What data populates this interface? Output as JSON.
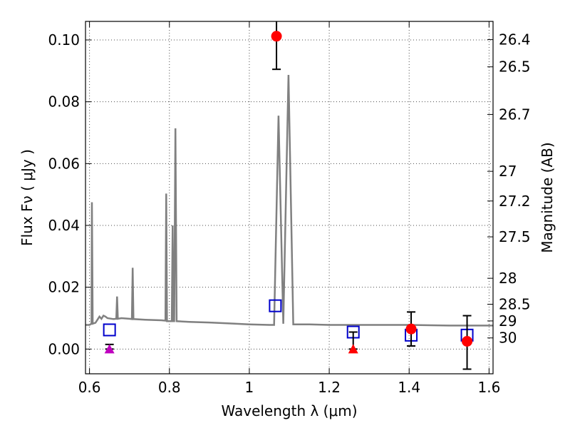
{
  "chart_data": {
    "type": "line",
    "xlabel": "Wavelength  λ (μm)",
    "ylabel": "Flux  Fν  ( μJy )",
    "ylabel_right": "Magnitude (AB)",
    "xlim": [
      0.59,
      1.61
    ],
    "ylim": [
      -0.008,
      0.106
    ],
    "grid": true,
    "x_ticks": [
      0.6,
      0.8,
      1.0,
      1.2,
      1.4,
      1.6
    ],
    "x_tick_labels": [
      "0.6",
      "0.8",
      "1",
      "1.2",
      "1.4",
      "1.6"
    ],
    "y_ticks": [
      0.0,
      0.02,
      0.04,
      0.06,
      0.08,
      0.1
    ],
    "y_tick_labels": [
      "0.00",
      "0.02",
      "0.04",
      "0.06",
      "0.08",
      "0.10"
    ],
    "right_ticks": [
      {
        "label": "26.4",
        "flux": 0.1001
      },
      {
        "label": "26.5",
        "flux": 0.0913
      },
      {
        "label": "26.7",
        "flux": 0.0759
      },
      {
        "label": "27",
        "flux": 0.0575
      },
      {
        "label": "27.2",
        "flux": 0.0479
      },
      {
        "label": "27.5",
        "flux": 0.0363
      },
      {
        "label": "28",
        "flux": 0.0229
      },
      {
        "label": "28.5",
        "flux": 0.0145
      },
      {
        "label": "29",
        "flux": 0.0091
      },
      {
        "label": "30",
        "flux": 0.0036
      }
    ],
    "series": [
      {
        "kind": "line",
        "color": "#808080",
        "points": [
          [
            0.59,
            0.0078
          ],
          [
            0.6,
            0.0078
          ],
          [
            0.605,
            0.0082
          ],
          [
            0.606,
            0.0475
          ],
          [
            0.608,
            0.0082
          ],
          [
            0.615,
            0.0085
          ],
          [
            0.62,
            0.0095
          ],
          [
            0.625,
            0.0105
          ],
          [
            0.63,
            0.0098
          ],
          [
            0.635,
            0.0108
          ],
          [
            0.64,
            0.0105
          ],
          [
            0.645,
            0.01
          ],
          [
            0.66,
            0.0097
          ],
          [
            0.667,
            0.0098
          ],
          [
            0.669,
            0.017
          ],
          [
            0.671,
            0.0098
          ],
          [
            0.68,
            0.01
          ],
          [
            0.7,
            0.0098
          ],
          [
            0.706,
            0.0097
          ],
          [
            0.708,
            0.0263
          ],
          [
            0.71,
            0.0097
          ],
          [
            0.74,
            0.0095
          ],
          [
            0.78,
            0.0093
          ],
          [
            0.79,
            0.0092
          ],
          [
            0.792,
            0.0503
          ],
          [
            0.794,
            0.009
          ],
          [
            0.8,
            0.009
          ],
          [
            0.806,
            0.009
          ],
          [
            0.808,
            0.04
          ],
          [
            0.81,
            0.009
          ],
          [
            0.812,
            0.009
          ],
          [
            0.815,
            0.0714
          ],
          [
            0.818,
            0.009
          ],
          [
            0.85,
            0.0088
          ],
          [
            0.9,
            0.0086
          ],
          [
            0.95,
            0.0083
          ],
          [
            1.0,
            0.008
          ],
          [
            1.05,
            0.0078
          ],
          [
            1.062,
            0.0078
          ],
          [
            1.073,
            0.0755
          ],
          [
            1.085,
            0.0082
          ],
          [
            1.098,
            0.0887
          ],
          [
            1.11,
            0.008
          ],
          [
            1.15,
            0.008
          ],
          [
            1.2,
            0.0078
          ],
          [
            1.3,
            0.0078
          ],
          [
            1.4,
            0.0078
          ],
          [
            1.5,
            0.0076
          ],
          [
            1.61,
            0.0076
          ]
        ]
      },
      {
        "kind": "scatter",
        "marker": "square-open",
        "color": "#0000cc",
        "points": [
          [
            0.65,
            0.0062
          ],
          [
            1.065,
            0.014
          ],
          [
            1.26,
            0.0055
          ],
          [
            1.405,
            0.0045
          ],
          [
            1.545,
            0.0045
          ]
        ]
      },
      {
        "kind": "scatter",
        "marker": "circle",
        "color": "#ff0000",
        "points": [
          {
            "x": 1.068,
            "y": 0.1012,
            "yerr_low": 0.0905,
            "yerr_high": 0.1065
          },
          {
            "x": 1.405,
            "y": 0.0065,
            "yerr_low": 0.001,
            "yerr_high": 0.012
          },
          {
            "x": 1.545,
            "y": 0.0025,
            "yerr_low": -0.0065,
            "yerr_high": 0.0108
          }
        ]
      },
      {
        "kind": "scatter",
        "marker": "triangle",
        "points": [
          {
            "x": 0.65,
            "y": 0.0,
            "color": "#bf00bf",
            "yerr_low": 0.0,
            "yerr_high": 0.0015
          },
          {
            "x": 1.26,
            "y": 0.0,
            "color": "#ff0000",
            "yerr_low": 0.0,
            "yerr_high": 0.0055
          }
        ]
      }
    ]
  }
}
